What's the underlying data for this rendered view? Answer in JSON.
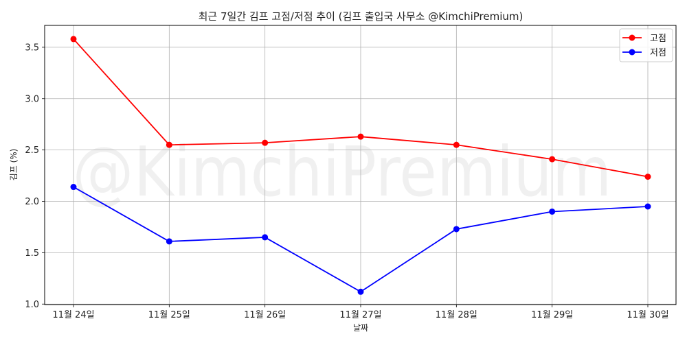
{
  "chart_data": {
    "type": "line",
    "title": "최근 7일간 김프 고점/저점 추이 (김프 출입국 사무소 @KimchiPremium)",
    "xlabel": "날짜",
    "ylabel": "김프 (%)",
    "categories": [
      "11월 24일",
      "11월 25일",
      "11월 26일",
      "11월 27일",
      "11월 28일",
      "11월 29일",
      "11월 30일"
    ],
    "series": [
      {
        "name": "고점",
        "color": "#ff0000",
        "values": [
          3.58,
          2.55,
          2.57,
          2.63,
          2.55,
          2.41,
          2.24
        ]
      },
      {
        "name": "저점",
        "color": "#0000ff",
        "values": [
          2.14,
          1.61,
          1.65,
          1.12,
          1.73,
          1.9,
          1.95
        ]
      }
    ],
    "ylim": [
      0.995,
      3.713
    ],
    "yticks": [
      1.0,
      1.5,
      2.0,
      2.5,
      3.0,
      3.5
    ],
    "ytick_labels": [
      "1.0",
      "1.5",
      "2.0",
      "2.5",
      "3.0",
      "3.5"
    ],
    "grid": true,
    "legend_position": "upper right",
    "watermark": "@KimchiPremium"
  }
}
